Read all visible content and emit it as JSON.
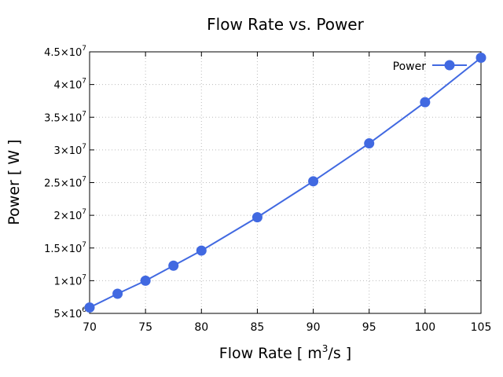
{
  "chart_data": {
    "type": "line",
    "title": "Flow Rate vs. Power",
    "xlabel": "Flow Rate [ m3/s ]",
    "xlabel_parts": {
      "pre": "Flow Rate [ m",
      "sup": "3",
      "post": "/s ]"
    },
    "ylabel": "Power [ W ]",
    "xlim": [
      70,
      105
    ],
    "ylim": [
      5000000,
      45000000
    ],
    "grid": true,
    "legend_position": "top-right",
    "x_ticks": [
      70,
      75,
      80,
      85,
      90,
      95,
      100,
      105
    ],
    "y_ticks": [
      {
        "value": 5000000,
        "mant": "5",
        "exp": "6"
      },
      {
        "value": 10000000,
        "mant": "1",
        "exp": "7"
      },
      {
        "value": 15000000,
        "mant": "1.5",
        "exp": "7"
      },
      {
        "value": 20000000,
        "mant": "2",
        "exp": "7"
      },
      {
        "value": 25000000,
        "mant": "2.5",
        "exp": "7"
      },
      {
        "value": 30000000,
        "mant": "3",
        "exp": "7"
      },
      {
        "value": 35000000,
        "mant": "3.5",
        "exp": "7"
      },
      {
        "value": 40000000,
        "mant": "4",
        "exp": "7"
      },
      {
        "value": 45000000,
        "mant": "4.5",
        "exp": "7"
      }
    ],
    "series": [
      {
        "name": "Power",
        "color": "#4169e1",
        "x": [
          70,
          72.5,
          75,
          77.5,
          80,
          85,
          90,
          95,
          100,
          105
        ],
        "values": [
          5900000,
          8000000,
          10000000,
          12300000,
          14600000,
          19700000,
          25200000,
          31000000,
          37300000,
          44100000
        ]
      }
    ]
  }
}
